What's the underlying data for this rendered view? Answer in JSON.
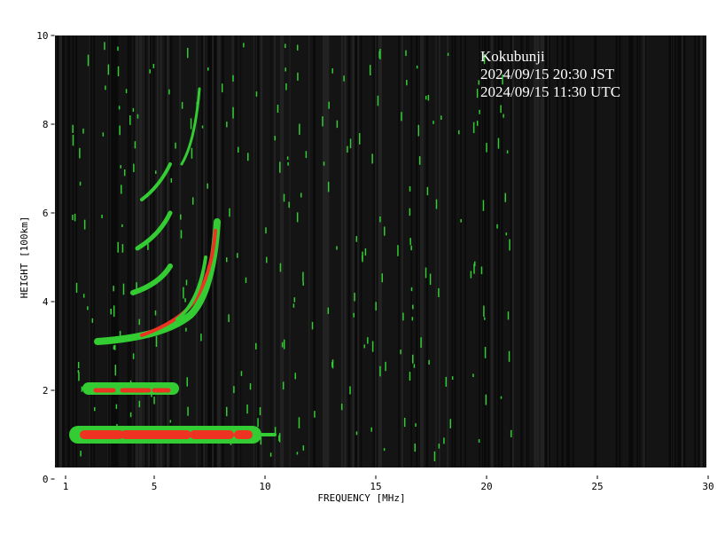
{
  "chart_data": {
    "type": "ionogram",
    "xlabel": "FREQUENCY [MHz]",
    "ylabel": "HEIGHT [100km]",
    "xlim": [
      0.5,
      30
    ],
    "xticks": [
      1,
      5,
      10,
      15,
      20,
      25,
      30
    ],
    "ylim": [
      0,
      10
    ],
    "yticks": [
      0,
      2,
      4,
      6,
      8,
      10
    ],
    "annotations": [
      "Kokubunji",
      "2024/09/15 20:30 JST",
      "2024/09/15 11:30 UTC"
    ]
  }
}
